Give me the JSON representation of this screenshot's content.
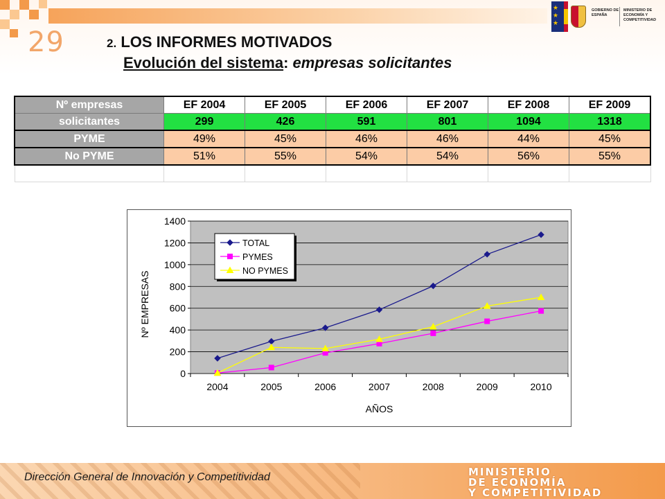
{
  "slide": {
    "number": "29"
  },
  "title": {
    "line1_num": "2.",
    "line1_text": "LOS INFORMES MOTIVADOS",
    "line2_underlined": "Evolución del sistema",
    "line2_colon": ": ",
    "line2_italic": "empresas solicitantes"
  },
  "logo": {
    "left_text": "GOBIERNO DE ESPAÑA",
    "right_text": "MINISTERIO DE ECONOMÍA Y COMPETITIVIDAD"
  },
  "table": {
    "header_label_1": "Nº empresas",
    "header_label_2": "solicitantes",
    "years": [
      "EF 2004",
      "EF 2005",
      "EF 2006",
      "EF 2007",
      "EF 2008",
      "EF 2009"
    ],
    "totals": [
      "299",
      "426",
      "591",
      "801",
      "1094",
      "1318"
    ],
    "rows": [
      {
        "label": "PYME",
        "values": [
          "49%",
          "45%",
          "46%",
          "46%",
          "44%",
          "45%"
        ]
      },
      {
        "label": "No PYME",
        "values": [
          "51%",
          "55%",
          "54%",
          "54%",
          "56%",
          "55%"
        ]
      }
    ]
  },
  "chart_data": {
    "type": "line",
    "x": [
      "2004",
      "2005",
      "2006",
      "2007",
      "2008",
      "2009",
      "2010"
    ],
    "series": [
      {
        "name": "TOTAL",
        "values": [
          140,
          296,
          420,
          586,
          805,
          1095,
          1275
        ]
      },
      {
        "name": "PYMES",
        "values": [
          5,
          55,
          190,
          275,
          370,
          480,
          575
        ]
      },
      {
        "name": "NO PYMES",
        "values": [
          5,
          240,
          230,
          315,
          430,
          620,
          700
        ]
      }
    ],
    "colors": [
      "#1a1a8c",
      "#ff00ff",
      "#ffff00"
    ],
    "markers": [
      "diamond",
      "square",
      "triangle"
    ],
    "xlabel": "AÑOS",
    "ylabel": "Nº EMPRESAS",
    "ylim": [
      0,
      1400
    ],
    "yticks": [
      "0",
      "200",
      "400",
      "600",
      "800",
      "1000",
      "1200",
      "1400"
    ],
    "grid": true,
    "plot_background": "#c0c0c0",
    "legend_position": "top-left"
  },
  "footer": {
    "left_text": "Dirección General de Innovación y Competitividad",
    "right_line1": "MINISTERIO",
    "right_line2": "DE ECONOMÍA",
    "right_line3": "Y COMPETITIVIDAD"
  }
}
